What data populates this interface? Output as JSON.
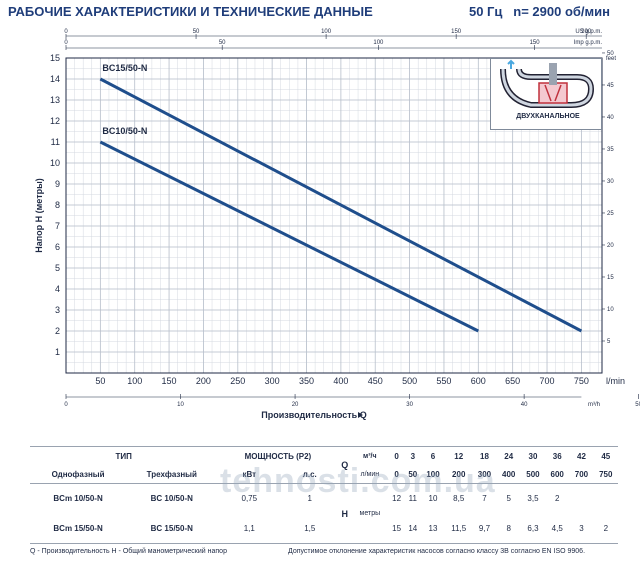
{
  "header": {
    "title": "РАБОЧИЕ ХАРАКТЕРИСТИКИ И ТЕХНИЧЕСКИЕ ДАННЫЕ",
    "freq": "50 Гц",
    "speed": "n= 2900 об/мин"
  },
  "inset": {
    "caption": "ДВУХКАНАЛЬНОЕ"
  },
  "chart_data": {
    "type": "line",
    "ylabel": "Напор H (метры)",
    "xlabel": "Производительность Q",
    "x_unit_bottom": "l/min",
    "x_unit_m3h": "m³/h",
    "x_unit_us": "US g.p.m.",
    "x_unit_imp": "Imp g.p.m.",
    "y_unit_right": "feet",
    "xlim": [
      0,
      780
    ],
    "ylim": [
      0,
      15
    ],
    "x_ticks": [
      50,
      100,
      150,
      200,
      250,
      300,
      350,
      400,
      450,
      500,
      550,
      600,
      650,
      700,
      750
    ],
    "y_ticks": [
      1,
      2,
      3,
      4,
      5,
      6,
      7,
      8,
      9,
      10,
      11,
      12,
      13,
      14,
      15
    ],
    "m3h_ticks": [
      0,
      10,
      20,
      30,
      40,
      50
    ],
    "us_ticks": [
      0,
      50,
      100,
      150,
      200
    ],
    "imp_ticks": [
      0,
      50,
      100,
      150
    ],
    "feet_ticks": [
      5,
      10,
      15,
      20,
      25,
      30,
      35,
      40,
      45,
      50
    ],
    "series": [
      {
        "name": "BC15/50-N",
        "x": [
          50,
          750
        ],
        "y": [
          14,
          2
        ]
      },
      {
        "name": "BC10/50-N",
        "x": [
          50,
          600
        ],
        "y": [
          11,
          2
        ]
      }
    ],
    "grid": true,
    "line_color": "#1f4e8c"
  },
  "table": {
    "type_header": "ТИП",
    "power_header": "МОЩНОСТЬ (P2)",
    "single_phase": "Однофазный",
    "three_phase": "Трехфазный",
    "kw": "кВт",
    "hp": "л.с.",
    "q_label": "Q",
    "m3h": "м³/ч",
    "lmin": "л/мин",
    "h_label": "H",
    "metres": "метры",
    "q_m3h": [
      "0",
      "3",
      "6",
      "12",
      "18",
      "24",
      "30",
      "36",
      "42",
      "45"
    ],
    "q_lmin": [
      "0",
      "50",
      "100",
      "200",
      "300",
      "400",
      "500",
      "600",
      "700",
      "750"
    ],
    "rows": [
      {
        "single": "BCm 10/50-N",
        "three": "BC 10/50-N",
        "kw": "0,75",
        "hp": "1",
        "h": [
          "12",
          "11",
          "10",
          "8,5",
          "7",
          "5",
          "3,5",
          "2",
          "",
          ""
        ]
      },
      {
        "single": "BCm 15/50-N",
        "three": "BC 15/50-N",
        "kw": "1,1",
        "hp": "1,5",
        "h": [
          "15",
          "14",
          "13",
          "11,5",
          "9,7",
          "8",
          "6,3",
          "4,5",
          "3",
          "2"
        ]
      }
    ]
  },
  "footer": {
    "left": "Q - Производительность   H - Общий манометрический напор",
    "right": "Допустимое отклонение характеристик насосов согласно классу 3В согласно EN ISO 9906."
  },
  "watermark": "tehnosti.com.ua"
}
